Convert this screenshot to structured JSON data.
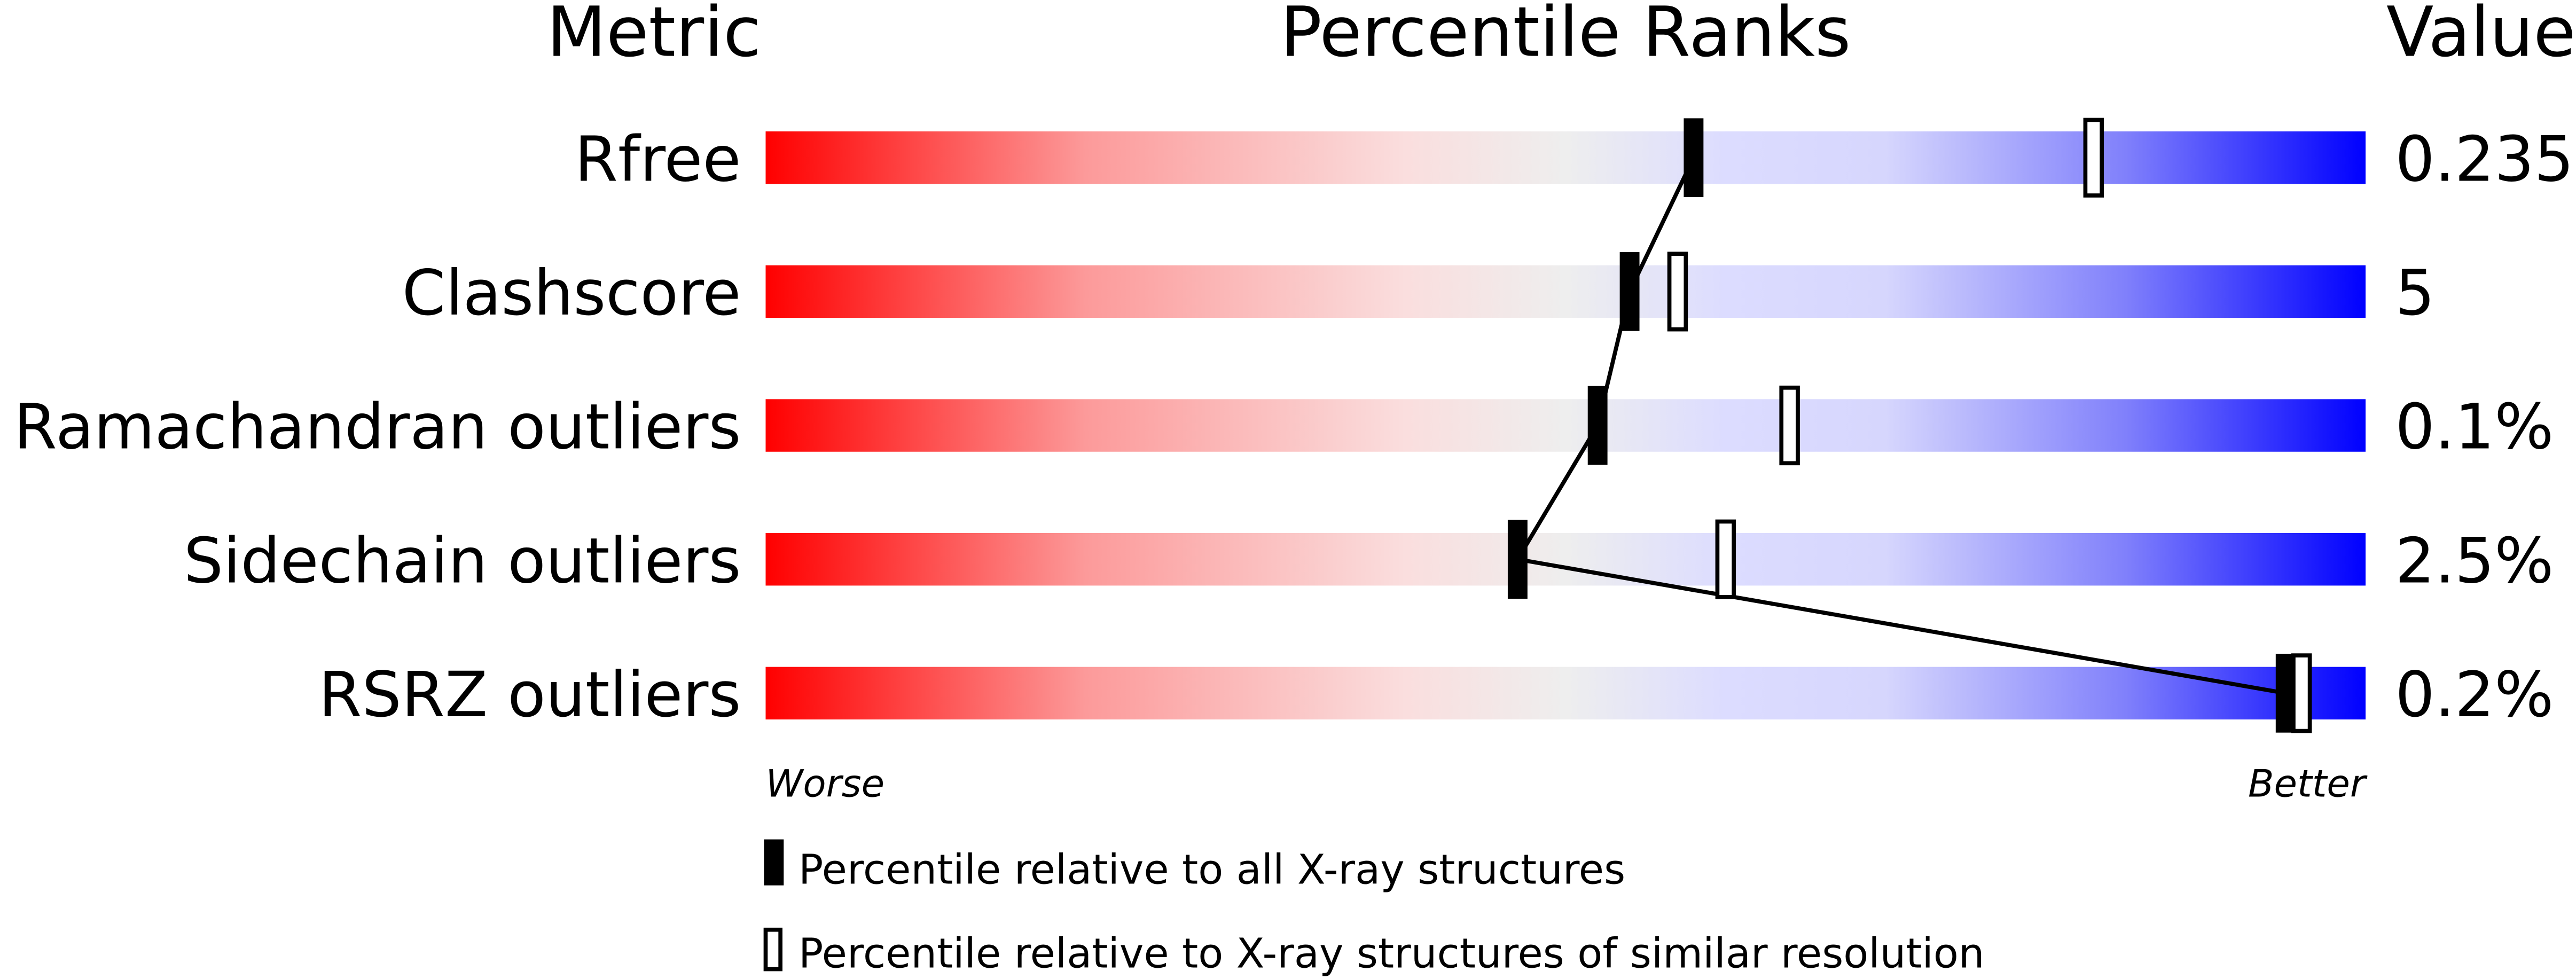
{
  "chart_data": {
    "type": "bar",
    "headers": {
      "metric": "Metric",
      "ranks": "Percentile Ranks",
      "value": "Value"
    },
    "metrics": [
      {
        "name": "Rfree",
        "value": "0.235",
        "percentile_all": 58,
        "percentile_similar": 83
      },
      {
        "name": "Clashscore",
        "value": "5",
        "percentile_all": 54,
        "percentile_similar": 57
      },
      {
        "name": "Ramachandran outliers",
        "value": "0.1%",
        "percentile_all": 52,
        "percentile_similar": 64
      },
      {
        "name": "Sidechain outliers",
        "value": "2.5%",
        "percentile_all": 47,
        "percentile_similar": 60
      },
      {
        "name": "RSRZ outliers",
        "value": "0.2%",
        "percentile_all": 95,
        "percentile_similar": 96
      }
    ],
    "xlim": [
      0,
      100
    ],
    "axis_labels": {
      "left": "Worse",
      "right": "Better"
    },
    "legend": {
      "all": "Percentile relative to all X-ray structures",
      "similar": "Percentile relative to X-ray structures of similar resolution"
    },
    "colors": {
      "worse": "#ff0000",
      "middle": "#eeeeee",
      "better": "#0000ff"
    }
  }
}
